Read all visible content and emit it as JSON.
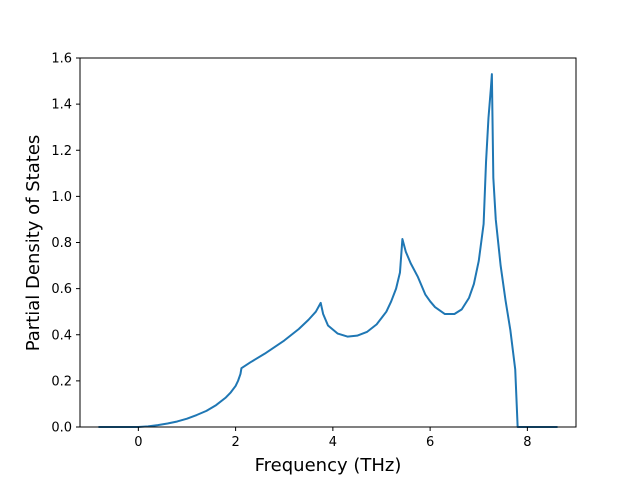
{
  "chart_data": {
    "type": "line",
    "title": "",
    "xlabel": "Frequency (THz)",
    "ylabel": "Partial Density of States",
    "xlim": [
      -1.2,
      9.0
    ],
    "ylim": [
      0.0,
      1.6
    ],
    "xticks": [
      0,
      2,
      4,
      6,
      8
    ],
    "xtick_labels": [
      "0",
      "2",
      "4",
      "6",
      "8"
    ],
    "yticks": [
      0.0,
      0.2,
      0.4,
      0.6,
      0.8,
      1.0,
      1.2,
      1.4,
      1.6
    ],
    "ytick_labels": [
      "0.0",
      "0.2",
      "0.4",
      "0.6",
      "0.8",
      "1.0",
      "1.2",
      "1.4",
      "1.6"
    ],
    "grid": false,
    "legend": "none",
    "series": [
      {
        "color": "#1f77b4",
        "x": [
          -0.8,
          0.0,
          0.2,
          0.4,
          0.6,
          0.8,
          1.0,
          1.2,
          1.4,
          1.6,
          1.8,
          1.9,
          2.0,
          2.05,
          2.1,
          2.12,
          2.3,
          2.6,
          3.0,
          3.3,
          3.5,
          3.65,
          3.75,
          3.8,
          3.9,
          4.1,
          4.3,
          4.5,
          4.7,
          4.9,
          5.1,
          5.2,
          5.3,
          5.38,
          5.43,
          5.5,
          5.6,
          5.75,
          5.9,
          6.0,
          6.1,
          6.3,
          6.5,
          6.65,
          6.8,
          6.9,
          7.0,
          7.05,
          7.1,
          7.15,
          7.2,
          7.25,
          7.27,
          7.3,
          7.35,
          7.45,
          7.55,
          7.65,
          7.75,
          7.8,
          8.0,
          8.3,
          8.6
        ],
        "y": [
          0.0,
          0.0,
          0.003,
          0.008,
          0.015,
          0.024,
          0.036,
          0.052,
          0.07,
          0.095,
          0.128,
          0.15,
          0.178,
          0.2,
          0.23,
          0.255,
          0.28,
          0.318,
          0.375,
          0.425,
          0.465,
          0.5,
          0.538,
          0.49,
          0.44,
          0.405,
          0.392,
          0.396,
          0.412,
          0.445,
          0.5,
          0.545,
          0.6,
          0.67,
          0.815,
          0.76,
          0.71,
          0.65,
          0.575,
          0.545,
          0.52,
          0.49,
          0.49,
          0.51,
          0.56,
          0.62,
          0.72,
          0.8,
          0.88,
          1.15,
          1.34,
          1.47,
          1.53,
          1.08,
          0.9,
          0.7,
          0.55,
          0.42,
          0.25,
          0.0,
          0.0,
          0.0,
          0.0
        ]
      }
    ]
  }
}
